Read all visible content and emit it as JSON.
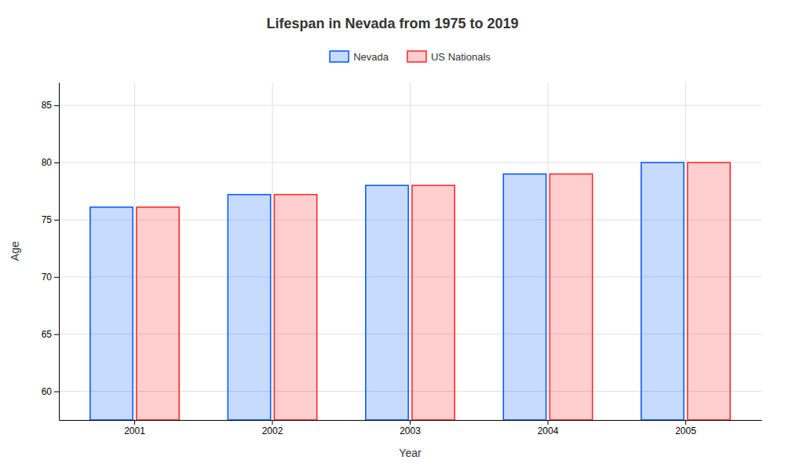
{
  "chart_data": {
    "type": "bar",
    "title": "Lifespan in Nevada from 1975 to 2019",
    "xlabel": "Year",
    "ylabel": "Age",
    "categories": [
      "2001",
      "2002",
      "2003",
      "2004",
      "2005"
    ],
    "series": [
      {
        "name": "Nevada",
        "color": "#0055ff",
        "values": [
          76.1,
          77.2,
          78.0,
          79.0,
          80.0
        ]
      },
      {
        "name": "US Nationals",
        "color": "#ff2222",
        "values": [
          76.1,
          77.2,
          78.0,
          79.0,
          80.0
        ]
      }
    ],
    "ylim": [
      57.5,
      87
    ],
    "yticks": [
      60,
      65,
      70,
      75,
      80,
      85
    ],
    "grid": true,
    "legend": "top"
  }
}
